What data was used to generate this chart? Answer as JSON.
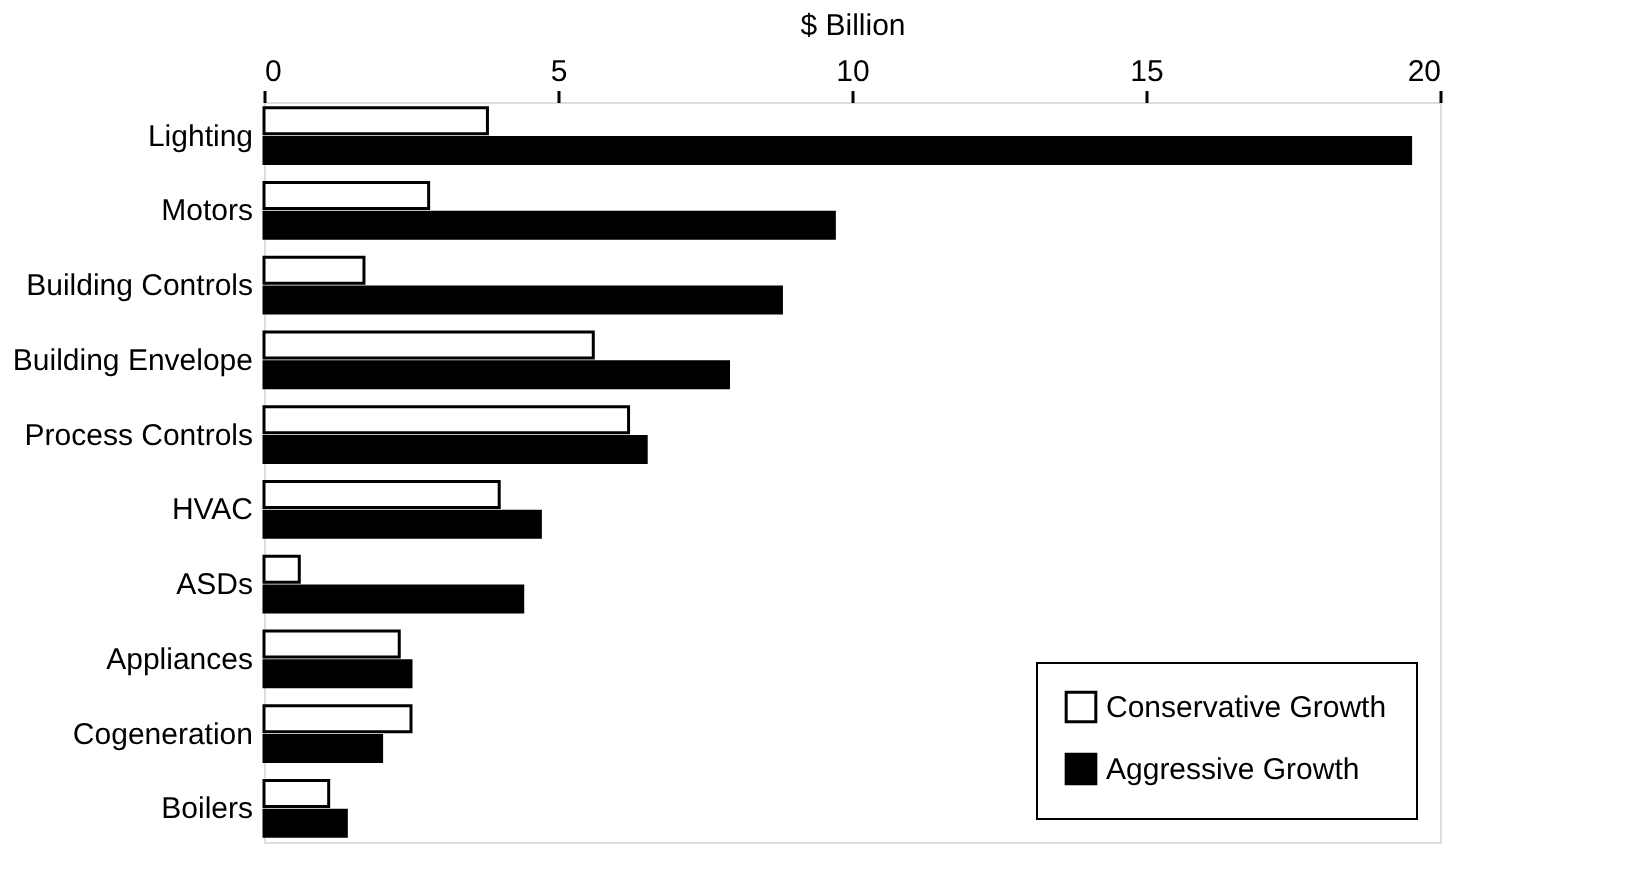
{
  "chart_data": {
    "type": "bar",
    "orientation": "horizontal",
    "xlabel": "$ Billion",
    "categories": [
      "Lighting",
      "Motors",
      "Building Controls",
      "Building Envelope",
      "Process Controls",
      "HVAC",
      "ASDs",
      "Appliances",
      "Cogeneration",
      "Boilers"
    ],
    "series": [
      {
        "name": "Conservative Growth",
        "color": "#ffffff",
        "values": [
          3.8,
          2.8,
          1.7,
          5.6,
          6.2,
          4.0,
          0.6,
          2.3,
          2.5,
          1.1
        ]
      },
      {
        "name": "Aggressive Growth",
        "color": "#000000",
        "values": [
          19.5,
          9.7,
          8.8,
          7.9,
          6.5,
          4.7,
          4.4,
          2.5,
          2.0,
          1.4
        ]
      }
    ],
    "xlim": [
      0,
      20
    ],
    "xticks": [
      0,
      5,
      10,
      15,
      20
    ],
    "grid": false,
    "legend": "bottom right"
  }
}
